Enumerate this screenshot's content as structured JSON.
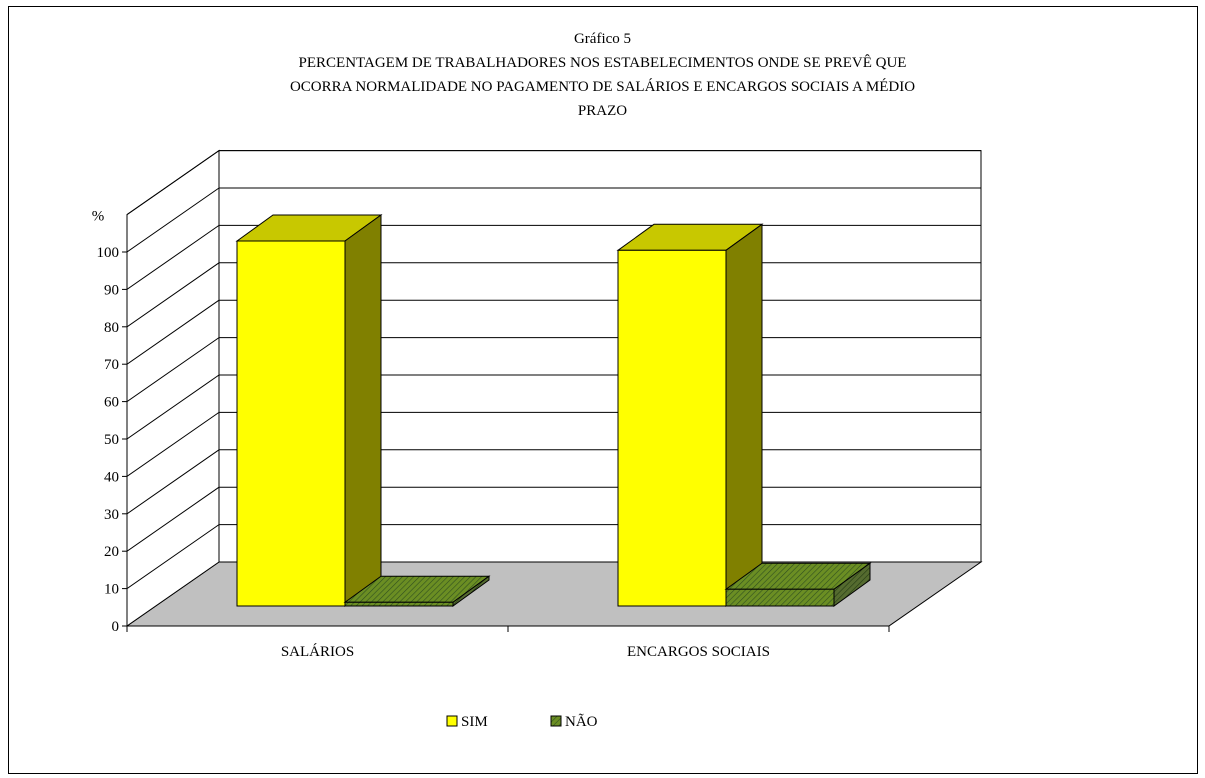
{
  "chart_data": {
    "type": "bar",
    "title_lines": [
      "Gráfico 5",
      "PERCENTAGEM DE TRABALHADORES NOS ESTABELECIMENTOS ONDE SE PREVÊ QUE",
      "OCORRA NORMALIDADE NO PAGAMENTO DE SALÁRIOS E ENCARGOS SOCIAIS A MÉDIO",
      "PRAZO"
    ],
    "ylabel": "%",
    "ylim": [
      0,
      100
    ],
    "yticks": [
      "0",
      "10",
      "20",
      "30",
      "40",
      "50",
      "60",
      "70",
      "80",
      "90",
      "100"
    ],
    "categories": [
      "SALÁRIOS",
      "ENCARGOS SOCIAIS"
    ],
    "series": [
      {
        "name": "SIM",
        "values": [
          98,
          95.5
        ],
        "color": "#ffff00",
        "top_color": "#c8c800",
        "side_color": "#808000"
      },
      {
        "name": "NÃO",
        "values": [
          1,
          4.5
        ],
        "color": "#6b8e23",
        "top_color": "#6b8e23",
        "side_color": "#556b2f"
      }
    ],
    "legend": {
      "position": "bottom",
      "items": [
        "SIM",
        "NÃO"
      ]
    },
    "grid": true,
    "floor_color": "#c0c0c0"
  }
}
